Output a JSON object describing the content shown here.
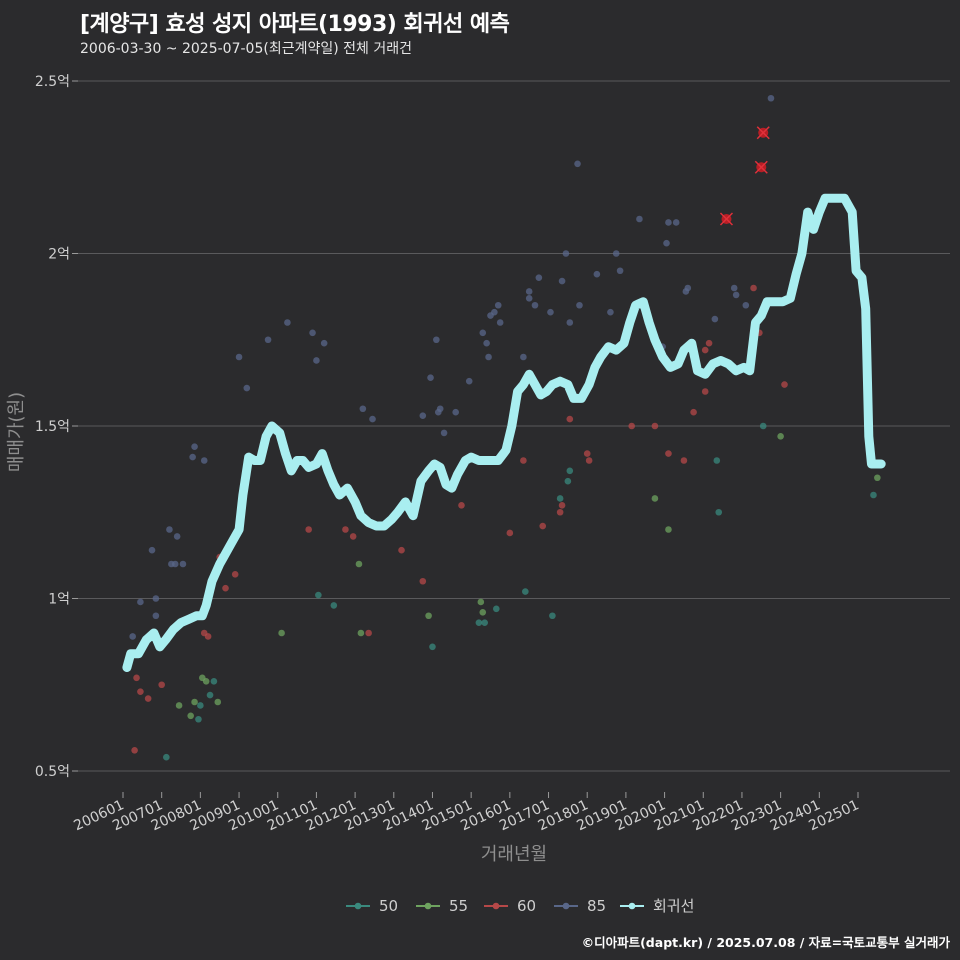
{
  "chart_data": {
    "type": "scatter",
    "title": "[계양구] 효성 성지 아파트(1993) 회귀선 예측",
    "subtitle": "2006-03-30 ~ 2025-07-05(최근계약일) 전체 거래건",
    "xlabel": "거래년월",
    "ylabel": "매매가(원)",
    "xlim": [
      2005.85,
      2026.0
    ],
    "ylim": [
      0.45,
      2.6
    ],
    "y_ticks": [
      0.5,
      1.0,
      1.5,
      2.0,
      2.5
    ],
    "y_tick_labels": [
      "0.5억",
      "1억",
      "1.5억",
      "2억",
      "2.5억"
    ],
    "x_ticks": [
      2006,
      2007,
      2008,
      2009,
      2010,
      2011,
      2012,
      2013,
      2014,
      2015,
      2016,
      2017,
      2018,
      2019,
      2020,
      2021,
      2022,
      2023,
      2024,
      2025
    ],
    "x_tick_labels": [
      "200601",
      "200701",
      "200801",
      "200901",
      "201001",
      "201101",
      "201201",
      "201301",
      "201401",
      "201501",
      "201601",
      "201701",
      "201801",
      "201901",
      "202001",
      "202101",
      "202201",
      "202301",
      "202401",
      "202501"
    ],
    "series": [
      {
        "name": "50",
        "color": "#3a8a7e",
        "points": [
          [
            2007.12,
            0.54
          ],
          [
            2007.95,
            0.65
          ],
          [
            2008.0,
            0.69
          ],
          [
            2008.25,
            0.72
          ],
          [
            2008.35,
            0.76
          ],
          [
            2011.05,
            1.01
          ],
          [
            2011.45,
            0.98
          ],
          [
            2014.0,
            0.86
          ],
          [
            2015.2,
            0.93
          ],
          [
            2015.35,
            0.93
          ],
          [
            2015.65,
            0.97
          ],
          [
            2016.4,
            1.02
          ],
          [
            2017.1,
            0.95
          ],
          [
            2017.3,
            1.29
          ],
          [
            2017.5,
            1.34
          ],
          [
            2017.55,
            1.37
          ],
          [
            2021.35,
            1.4
          ],
          [
            2021.4,
            1.25
          ],
          [
            2022.55,
            1.5
          ],
          [
            2025.4,
            1.3
          ]
        ]
      },
      {
        "name": "55",
        "color": "#6ea35f",
        "points": [
          [
            2007.45,
            0.69
          ],
          [
            2007.75,
            0.66
          ],
          [
            2007.85,
            0.7
          ],
          [
            2008.05,
            0.77
          ],
          [
            2008.15,
            0.76
          ],
          [
            2008.45,
            0.7
          ],
          [
            2010.1,
            0.9
          ],
          [
            2012.1,
            1.1
          ],
          [
            2012.15,
            0.9
          ],
          [
            2013.9,
            0.95
          ],
          [
            2015.25,
            0.99
          ],
          [
            2015.3,
            0.96
          ],
          [
            2019.75,
            1.29
          ],
          [
            2020.1,
            1.2
          ],
          [
            2023.0,
            1.47
          ],
          [
            2025.5,
            1.35
          ]
        ]
      },
      {
        "name": "60",
        "color": "#b64848",
        "points": [
          [
            2006.3,
            0.56
          ],
          [
            2006.35,
            0.77
          ],
          [
            2006.45,
            0.73
          ],
          [
            2006.65,
            0.71
          ],
          [
            2007.0,
            0.75
          ],
          [
            2008.1,
            0.9
          ],
          [
            2008.2,
            0.89
          ],
          [
            2008.5,
            1.12
          ],
          [
            2008.65,
            1.03
          ],
          [
            2008.9,
            1.07
          ],
          [
            2010.8,
            1.2
          ],
          [
            2011.75,
            1.2
          ],
          [
            2011.95,
            1.18
          ],
          [
            2012.35,
            0.9
          ],
          [
            2013.2,
            1.14
          ],
          [
            2013.75,
            1.05
          ],
          [
            2014.75,
            1.27
          ],
          [
            2016.0,
            1.19
          ],
          [
            2016.35,
            1.4
          ],
          [
            2016.85,
            1.21
          ],
          [
            2017.3,
            1.25
          ],
          [
            2017.35,
            1.27
          ],
          [
            2017.55,
            1.52
          ],
          [
            2018.0,
            1.42
          ],
          [
            2018.05,
            1.4
          ],
          [
            2019.15,
            1.5
          ],
          [
            2019.75,
            1.5
          ],
          [
            2020.1,
            1.42
          ],
          [
            2020.5,
            1.4
          ],
          [
            2020.75,
            1.54
          ],
          [
            2021.05,
            1.6
          ],
          [
            2021.05,
            1.72
          ],
          [
            2021.15,
            1.74
          ],
          [
            2022.3,
            1.9
          ],
          [
            2022.45,
            1.77
          ],
          [
            2023.1,
            1.62
          ]
        ]
      },
      {
        "name": "85",
        "color": "#596789",
        "points": [
          [
            2006.25,
            0.89
          ],
          [
            2006.45,
            0.99
          ],
          [
            2006.75,
            1.14
          ],
          [
            2006.85,
            1.0
          ],
          [
            2006.85,
            0.95
          ],
          [
            2007.2,
            1.2
          ],
          [
            2007.25,
            1.1
          ],
          [
            2007.35,
            1.1
          ],
          [
            2007.4,
            1.18
          ],
          [
            2007.55,
            1.1
          ],
          [
            2007.8,
            1.41
          ],
          [
            2007.85,
            1.44
          ],
          [
            2008.1,
            1.4
          ],
          [
            2009.0,
            1.7
          ],
          [
            2009.2,
            1.61
          ],
          [
            2009.75,
            1.75
          ],
          [
            2010.25,
            1.8
          ],
          [
            2010.9,
            1.77
          ],
          [
            2011.0,
            1.69
          ],
          [
            2011.2,
            1.74
          ],
          [
            2012.2,
            1.55
          ],
          [
            2012.45,
            1.52
          ],
          [
            2013.75,
            1.53
          ],
          [
            2013.95,
            1.64
          ],
          [
            2014.1,
            1.75
          ],
          [
            2014.15,
            1.54
          ],
          [
            2014.2,
            1.55
          ],
          [
            2014.3,
            1.48
          ],
          [
            2014.6,
            1.54
          ],
          [
            2014.95,
            1.63
          ],
          [
            2015.3,
            1.77
          ],
          [
            2015.4,
            1.74
          ],
          [
            2015.45,
            1.7
          ],
          [
            2015.5,
            1.82
          ],
          [
            2015.6,
            1.83
          ],
          [
            2015.7,
            1.85
          ],
          [
            2015.75,
            1.8
          ],
          [
            2016.35,
            1.7
          ],
          [
            2016.5,
            1.89
          ],
          [
            2016.5,
            1.87
          ],
          [
            2016.65,
            1.85
          ],
          [
            2016.75,
            1.93
          ],
          [
            2017.05,
            1.83
          ],
          [
            2017.35,
            1.92
          ],
          [
            2017.45,
            2.0
          ],
          [
            2017.55,
            1.8
          ],
          [
            2017.75,
            2.26
          ],
          [
            2017.8,
            1.85
          ],
          [
            2018.25,
            1.94
          ],
          [
            2018.6,
            1.83
          ],
          [
            2018.75,
            2.0
          ],
          [
            2018.85,
            1.95
          ],
          [
            2019.25,
            1.84
          ],
          [
            2019.35,
            2.1
          ],
          [
            2019.95,
            1.73
          ],
          [
            2020.05,
            2.03
          ],
          [
            2020.1,
            2.09
          ],
          [
            2020.3,
            2.09
          ],
          [
            2020.55,
            1.89
          ],
          [
            2020.6,
            1.9
          ],
          [
            2021.3,
            1.81
          ],
          [
            2021.8,
            1.9
          ],
          [
            2021.85,
            1.88
          ],
          [
            2022.1,
            1.85
          ],
          [
            2022.75,
            2.45
          ]
        ]
      }
    ],
    "outliers": [
      [
        2021.6,
        2.1
      ],
      [
        2022.5,
        2.25
      ],
      [
        2022.55,
        2.35
      ]
    ],
    "regression": {
      "name": "회귀선",
      "color": "#a9eef0",
      "points": [
        [
          2006.1,
          0.8
        ],
        [
          2006.2,
          0.84
        ],
        [
          2006.4,
          0.84
        ],
        [
          2006.6,
          0.88
        ],
        [
          2006.8,
          0.9
        ],
        [
          2006.95,
          0.86
        ],
        [
          2007.1,
          0.88
        ],
        [
          2007.3,
          0.91
        ],
        [
          2007.5,
          0.93
        ],
        [
          2007.7,
          0.94
        ],
        [
          2007.9,
          0.95
        ],
        [
          2008.05,
          0.95
        ],
        [
          2008.15,
          0.98
        ],
        [
          2008.3,
          1.05
        ],
        [
          2008.5,
          1.1
        ],
        [
          2008.6,
          1.12
        ],
        [
          2008.8,
          1.16
        ],
        [
          2009.0,
          1.2
        ],
        [
          2009.1,
          1.3
        ],
        [
          2009.25,
          1.41
        ],
        [
          2009.4,
          1.4
        ],
        [
          2009.55,
          1.4
        ],
        [
          2009.7,
          1.47
        ],
        [
          2009.85,
          1.5
        ],
        [
          2010.05,
          1.48
        ],
        [
          2010.2,
          1.42
        ],
        [
          2010.35,
          1.37
        ],
        [
          2010.5,
          1.4
        ],
        [
          2010.65,
          1.4
        ],
        [
          2010.8,
          1.38
        ],
        [
          2011.0,
          1.39
        ],
        [
          2011.15,
          1.42
        ],
        [
          2011.3,
          1.37
        ],
        [
          2011.45,
          1.33
        ],
        [
          2011.6,
          1.3
        ],
        [
          2011.8,
          1.32
        ],
        [
          2012.0,
          1.28
        ],
        [
          2012.15,
          1.24
        ],
        [
          2012.35,
          1.22
        ],
        [
          2012.55,
          1.21
        ],
        [
          2012.75,
          1.21
        ],
        [
          2012.95,
          1.23
        ],
        [
          2013.1,
          1.25
        ],
        [
          2013.3,
          1.28
        ],
        [
          2013.5,
          1.24
        ],
        [
          2013.7,
          1.34
        ],
        [
          2013.9,
          1.37
        ],
        [
          2014.05,
          1.39
        ],
        [
          2014.2,
          1.38
        ],
        [
          2014.35,
          1.33
        ],
        [
          2014.5,
          1.32
        ],
        [
          2014.65,
          1.36
        ],
        [
          2014.85,
          1.4
        ],
        [
          2015.0,
          1.41
        ],
        [
          2015.2,
          1.4
        ],
        [
          2015.45,
          1.4
        ],
        [
          2015.7,
          1.4
        ],
        [
          2015.9,
          1.43
        ],
        [
          2016.05,
          1.5
        ],
        [
          2016.2,
          1.6
        ],
        [
          2016.35,
          1.62
        ],
        [
          2016.5,
          1.65
        ],
        [
          2016.65,
          1.62
        ],
        [
          2016.8,
          1.59
        ],
        [
          2016.95,
          1.6
        ],
        [
          2017.1,
          1.62
        ],
        [
          2017.3,
          1.63
        ],
        [
          2017.5,
          1.62
        ],
        [
          2017.65,
          1.58
        ],
        [
          2017.85,
          1.58
        ],
        [
          2018.05,
          1.62
        ],
        [
          2018.2,
          1.67
        ],
        [
          2018.35,
          1.7
        ],
        [
          2018.55,
          1.73
        ],
        [
          2018.75,
          1.72
        ],
        [
          2018.95,
          1.74
        ],
        [
          2019.1,
          1.8
        ],
        [
          2019.25,
          1.85
        ],
        [
          2019.45,
          1.86
        ],
        [
          2019.6,
          1.8
        ],
        [
          2019.75,
          1.75
        ],
        [
          2019.95,
          1.7
        ],
        [
          2020.15,
          1.67
        ],
        [
          2020.35,
          1.68
        ],
        [
          2020.5,
          1.72
        ],
        [
          2020.7,
          1.74
        ],
        [
          2020.85,
          1.66
        ],
        [
          2021.05,
          1.65
        ],
        [
          2021.25,
          1.68
        ],
        [
          2021.45,
          1.69
        ],
        [
          2021.65,
          1.68
        ],
        [
          2021.85,
          1.66
        ],
        [
          2022.05,
          1.67
        ],
        [
          2022.2,
          1.66
        ],
        [
          2022.35,
          1.8
        ],
        [
          2022.5,
          1.82
        ],
        [
          2022.65,
          1.86
        ],
        [
          2022.85,
          1.86
        ],
        [
          2023.05,
          1.86
        ],
        [
          2023.25,
          1.87
        ],
        [
          2023.4,
          1.94
        ],
        [
          2023.55,
          2.0
        ],
        [
          2023.7,
          2.12
        ],
        [
          2023.85,
          2.07
        ],
        [
          2024.0,
          2.12
        ],
        [
          2024.15,
          2.16
        ],
        [
          2024.4,
          2.16
        ],
        [
          2024.65,
          2.16
        ],
        [
          2024.85,
          2.12
        ],
        [
          2024.95,
          1.95
        ],
        [
          2025.1,
          1.93
        ],
        [
          2025.2,
          1.84
        ],
        [
          2025.28,
          1.47
        ],
        [
          2025.35,
          1.39
        ],
        [
          2025.6,
          1.39
        ]
      ]
    },
    "legend": {
      "position": "bottom",
      "items": [
        "50",
        "55",
        "60",
        "85",
        "회귀선"
      ]
    }
  },
  "credit": "©디아파트(dapt.kr) / 2025.07.08 / 자료=국토교통부 실거래가"
}
